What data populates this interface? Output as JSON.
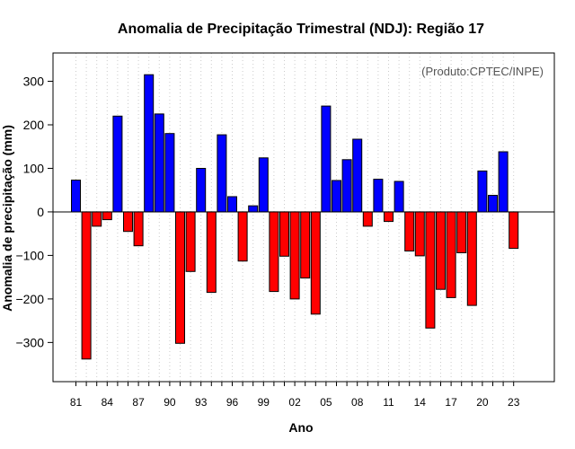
{
  "chart_data": {
    "type": "bar",
    "title": "Anomalia de Precipitação Trimestral (NDJ): Região 17",
    "xlabel": "Ano",
    "ylabel": "Anomalia de precipitação (mm)",
    "annotation": "(Produto:CPTEC/INPE)",
    "ylim": [
      -390,
      365
    ],
    "yticks": [
      -300,
      -200,
      -100,
      0,
      100,
      200,
      300
    ],
    "xticks": [
      "81",
      "84",
      "87",
      "90",
      "93",
      "96",
      "99",
      "02",
      "05",
      "08",
      "11",
      "14",
      "17",
      "20",
      "23"
    ],
    "grid": "vertical dotted",
    "colors": {
      "positive": "#0000ff",
      "negative": "#ff0000"
    },
    "years": [
      1981,
      1982,
      1983,
      1984,
      1985,
      1986,
      1987,
      1988,
      1989,
      1990,
      1991,
      1992,
      1993,
      1994,
      1995,
      1996,
      1997,
      1998,
      1999,
      2000,
      2001,
      2002,
      2003,
      2004,
      2005,
      2006,
      2007,
      2008,
      2009,
      2010,
      2011,
      2012,
      2013,
      2014,
      2015,
      2016,
      2017,
      2018,
      2019,
      2020,
      2021,
      2022,
      2023
    ],
    "values": [
      73,
      -338,
      -33,
      -18,
      220,
      -45,
      -78,
      315,
      225,
      180,
      -302,
      -137,
      100,
      -185,
      177,
      35,
      -113,
      14,
      124,
      -183,
      -102,
      -200,
      -152,
      -235,
      243,
      72,
      120,
      167,
      -33,
      75,
      -22,
      70,
      -90,
      -101,
      -267,
      -178,
      -197,
      -94,
      -215,
      94,
      38,
      138,
      -84
    ]
  }
}
